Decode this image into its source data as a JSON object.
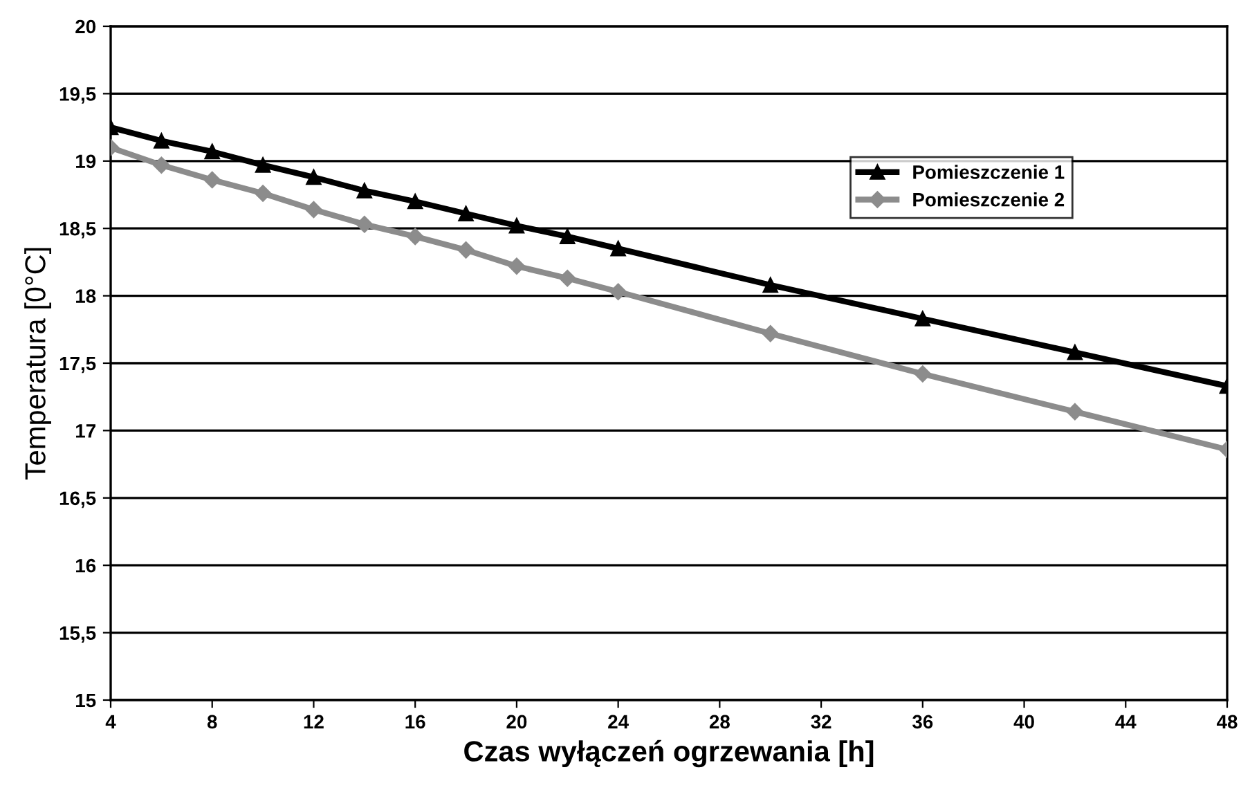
{
  "chart_data": {
    "type": "line",
    "xlabel": "Czas wyłączeń ogrzewania [h]",
    "ylabel": "Temperatura [0°C]",
    "x": [
      4,
      6,
      8,
      10,
      12,
      14,
      16,
      18,
      20,
      22,
      24,
      30,
      36,
      42,
      48
    ],
    "series": [
      {
        "name": "Pomieszczenie 1",
        "color": "#000000",
        "marker": "triangle",
        "values": [
          19.25,
          19.15,
          19.07,
          18.97,
          18.88,
          18.78,
          18.7,
          18.61,
          18.52,
          18.44,
          18.35,
          18.08,
          17.83,
          17.58,
          17.33
        ]
      },
      {
        "name": "Pomieszczenie 2",
        "color": "#8c8c8c",
        "marker": "diamond",
        "values": [
          19.1,
          18.97,
          18.86,
          18.76,
          18.64,
          18.53,
          18.44,
          18.34,
          18.22,
          18.13,
          18.03,
          17.72,
          17.42,
          17.14,
          16.86
        ]
      }
    ],
    "xlim": [
      4,
      48
    ],
    "xticks": [
      4,
      8,
      12,
      16,
      20,
      24,
      28,
      32,
      36,
      40,
      44,
      48
    ],
    "ylim": [
      15,
      20
    ],
    "yticks": [
      15,
      {
        "value": 15.5,
        "label": "15,5"
      },
      16,
      {
        "value": 16.5,
        "label": "16,5"
      },
      17,
      {
        "value": 17.5,
        "label": "17,5"
      },
      18,
      {
        "value": 18.5,
        "label": "18,5"
      },
      19,
      {
        "value": 19.5,
        "label": "19,5"
      },
      20
    ],
    "grid": "y",
    "legend": "top right",
    "line_style": "solid"
  }
}
